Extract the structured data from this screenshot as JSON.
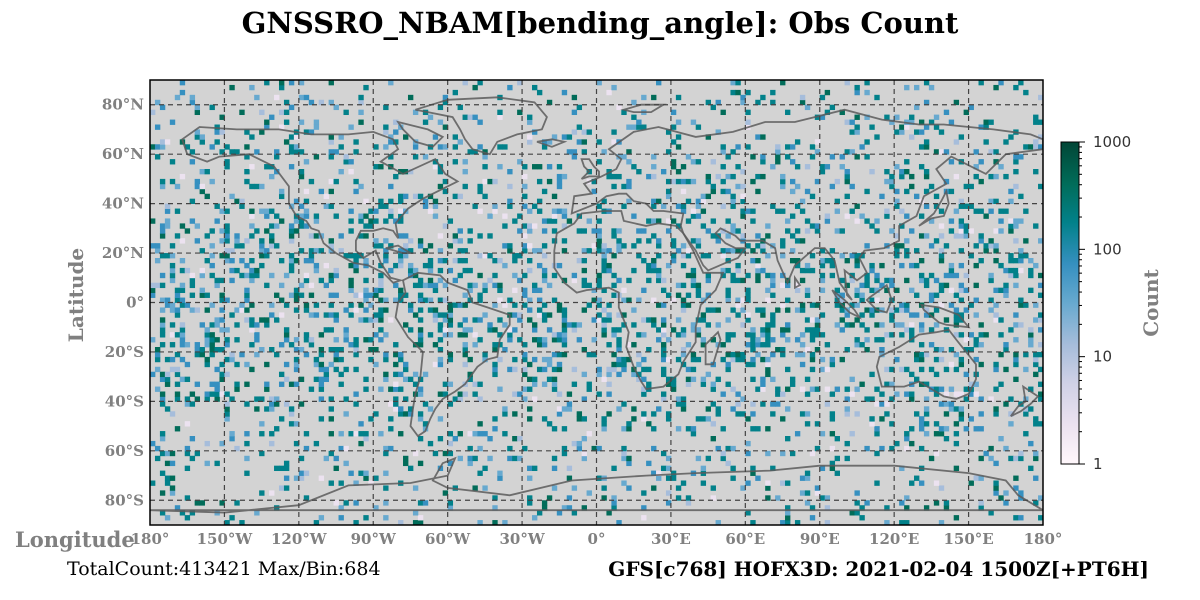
{
  "title": "GNSSRO_NBAM[bending_angle]: Obs Count",
  "footer": {
    "stats": "TotalCount:413421 Max/Bin:684",
    "run": "GFS[c768] HOFX3D: 2021-02-04 1500Z[+PT6H]"
  },
  "chart_data": {
    "type": "heatmap",
    "title": "GNSSRO_NBAM[bending_angle]: Obs Count",
    "xlabel": "Longitude",
    "ylabel": "Latitude",
    "xlim": [
      -180,
      180
    ],
    "ylim": [
      -90,
      90
    ],
    "x_ticks": [
      -180,
      -150,
      -120,
      -90,
      -60,
      -30,
      0,
      30,
      60,
      90,
      120,
      150,
      180
    ],
    "x_tick_labels": [
      "180°",
      "150°W",
      "120°W",
      "90°W",
      "60°W",
      "30°W",
      "0°",
      "30°E",
      "60°E",
      "90°E",
      "120°E",
      "150°E",
      "180°"
    ],
    "y_ticks": [
      80,
      60,
      40,
      20,
      0,
      -20,
      -40,
      -60,
      -80
    ],
    "y_tick_labels": [
      "80°N",
      "60°N",
      "40°N",
      "20°N",
      "0°",
      "20°S",
      "40°S",
      "60°S",
      "80°S"
    ],
    "grid": true,
    "background_color": "#d3d3d3",
    "colorbar": {
      "label": "Count",
      "scale": "log",
      "range": [
        1,
        1000
      ],
      "ticks": [
        1,
        10,
        100,
        1000
      ],
      "tick_labels": [
        "1",
        "10",
        "100",
        "1000"
      ],
      "colors": [
        "#fff7fb",
        "#ece2f0",
        "#d0d1e6",
        "#a6bddb",
        "#67a9cf",
        "#3690c0",
        "#02818a",
        "#016c59",
        "#014636"
      ]
    },
    "total_count": 413421,
    "max_per_bin": 684,
    "bin_size_deg": 2
  }
}
